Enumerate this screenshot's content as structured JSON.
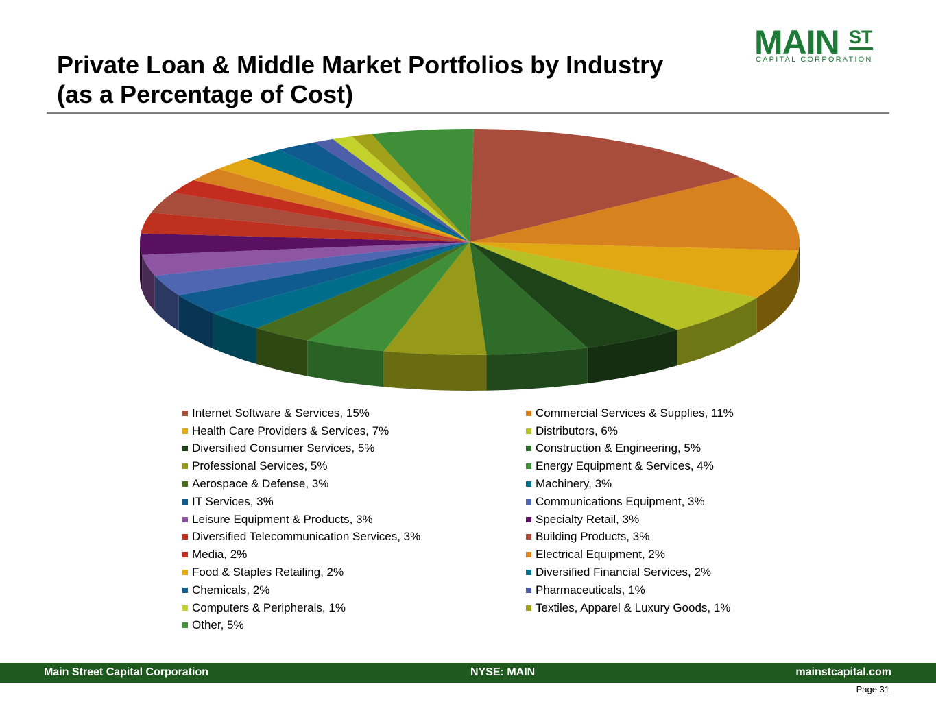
{
  "header": {
    "title_line1": "Private Loan & Middle Market Portfolios by Industry",
    "title_line2": "(as a Percentage of Cost)"
  },
  "logo": {
    "main": "MAIN",
    "st": "ST",
    "sub": "CAPITAL CORPORATION",
    "color": "#1e7a37"
  },
  "chart_data": {
    "type": "pie",
    "style": "3d",
    "legend_position": "bottom",
    "unit": "%",
    "slices": [
      {
        "label": "Internet Software & Services, 15%",
        "value": 15,
        "color": "#a84c3c"
      },
      {
        "label": "Commercial Services & Supplies, 11%",
        "value": 11,
        "color": "#d8811f"
      },
      {
        "label": "Health Care Providers & Services, 7%",
        "value": 7,
        "color": "#e2a814"
      },
      {
        "label": "Distributors, 6%",
        "value": 6,
        "color": "#b5c124"
      },
      {
        "label": "Diversified Consumer Services, 5%",
        "value": 5,
        "color": "#1f4318"
      },
      {
        "label": "Construction & Engineering, 5%",
        "value": 5,
        "color": "#2f6b29"
      },
      {
        "label": "Professional Services, 5%",
        "value": 5,
        "color": "#979a19"
      },
      {
        "label": "Energy Equipment & Services, 4%",
        "value": 4,
        "color": "#3e8f37"
      },
      {
        "label": "Aerospace & Defense, 3%",
        "value": 3,
        "color": "#476c1d"
      },
      {
        "label": "Machinery, 3%",
        "value": 3,
        "color": "#006d8a"
      },
      {
        "label": "IT Services, 3%",
        "value": 3,
        "color": "#0f5a8e"
      },
      {
        "label": "Communications Equipment, 3%",
        "value": 3,
        "color": "#4f66b3"
      },
      {
        "label": "Leisure Equipment & Products, 3%",
        "value": 3,
        "color": "#8e55a3"
      },
      {
        "label": "Specialty Retail, 3%",
        "value": 3,
        "color": "#5a1060"
      },
      {
        "label": "Diversified Telecommunication Services, 3%",
        "value": 3,
        "color": "#bf311f"
      },
      {
        "label": "Building Products, 3%",
        "value": 3,
        "color": "#a84c3c"
      },
      {
        "label": "Media, 2%",
        "value": 2,
        "color": "#c22d20"
      },
      {
        "label": "Electrical Equipment, 2%",
        "value": 2,
        "color": "#d8811f"
      },
      {
        "label": "Food & Staples Retailing, 2%",
        "value": 2,
        "color": "#e2a814"
      },
      {
        "label": "Diversified Financial Services, 2%",
        "value": 2,
        "color": "#006d8a"
      },
      {
        "label": "Chemicals, 2%",
        "value": 2,
        "color": "#0f5a8e"
      },
      {
        "label": "Pharmaceuticals, 1%",
        "value": 1,
        "color": "#4f5ea8"
      },
      {
        "label": "Computers & Peripherals, 1%",
        "value": 1,
        "color": "#c3d12d"
      },
      {
        "label": "Textiles, Apparel & Luxury Goods, 1%",
        "value": 1,
        "color": "#a3a01a"
      },
      {
        "label": "Other, 5%",
        "value": 5,
        "color": "#3e8f37"
      }
    ]
  },
  "footer": {
    "left": "Main Street Capital Corporation",
    "center": "NYSE: MAIN",
    "right": "mainstcapital.com",
    "page": "Page  31",
    "background": "#1e5a1e"
  }
}
